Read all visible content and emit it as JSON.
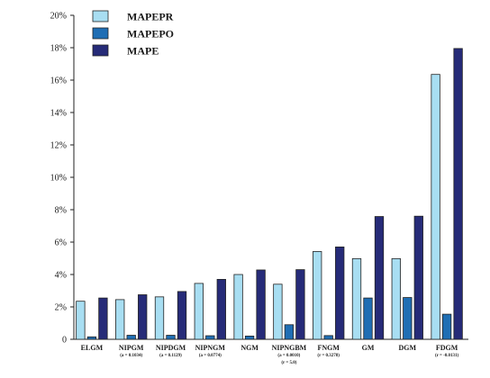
{
  "chart_data": {
    "type": "bar",
    "categories": [
      "ELGM",
      "NIPGM",
      "NIPDGM",
      "NIPNGM",
      "NGM",
      "NIPNGBM",
      "FNGM",
      "GM",
      "DGM",
      "FDGM"
    ],
    "category_notes": [
      [],
      [
        "(a = 0.1034)"
      ],
      [
        "(a = 0.1129)"
      ],
      [
        "(a = 0.0774)"
      ],
      [],
      [
        "(a = 0.0010)",
        "(r = 5.0)"
      ],
      [
        "(r = 0.3278)"
      ],
      [],
      [],
      [
        "(r = -0.0131)"
      ]
    ],
    "series": [
      {
        "name": "MAPEPR",
        "color": "#a8def2",
        "values": [
          2.35,
          2.45,
          2.62,
          3.45,
          4.0,
          3.4,
          5.42,
          4.98,
          4.98,
          16.35
        ]
      },
      {
        "name": "MAPEPO",
        "color": "#1f6eb4",
        "values": [
          0.15,
          0.25,
          0.25,
          0.22,
          0.2,
          0.9,
          0.23,
          2.55,
          2.58,
          1.55
        ]
      },
      {
        "name": "MAPE",
        "color": "#262b78",
        "values": [
          2.55,
          2.75,
          2.95,
          3.7,
          4.28,
          4.3,
          5.7,
          7.58,
          7.6,
          17.95
        ]
      }
    ],
    "yticks": [
      "0",
      "2%",
      "4%",
      "6%",
      "8%",
      "10%",
      "12%",
      "14%",
      "16%",
      "18%",
      "20%"
    ],
    "ylim": [
      0,
      20
    ],
    "title": "",
    "xlabel": "",
    "ylabel": "",
    "grid": false,
    "legend_position": "top-left"
  }
}
